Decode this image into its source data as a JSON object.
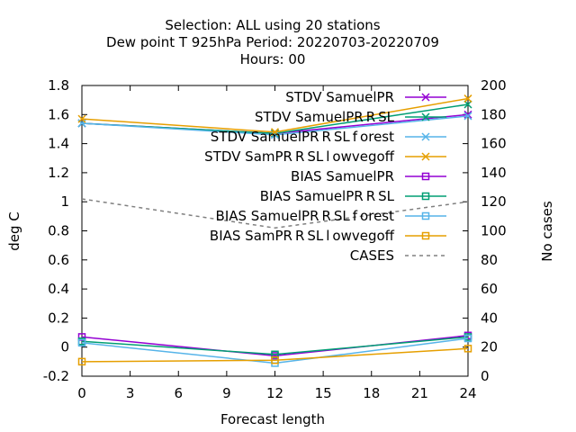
{
  "chart_data": {
    "type": "line",
    "title_lines": [
      "Selection: ALL using    20 stations",
      "Dew point T 925hPa   Period: 20220703-20220709",
      "Hours:  00"
    ],
    "xlabel": "Forecast length",
    "ylabel": "deg C",
    "y2label": "No cases",
    "x": [
      0,
      12,
      24
    ],
    "xlim": [
      0,
      24
    ],
    "xticks": [
      0,
      3,
      6,
      9,
      12,
      15,
      18,
      21,
      24
    ],
    "ylim": [
      -0.2,
      1.8
    ],
    "yticks": [
      -0.2,
      0,
      0.2,
      0.4,
      0.6,
      0.8,
      1,
      1.2,
      1.4,
      1.6,
      1.8
    ],
    "ytick_labels": [
      "-0.2",
      "0",
      "0.2",
      "0.4",
      "0.6",
      "0.8",
      "1",
      "1.2",
      "1.4",
      "1.6",
      "1.8"
    ],
    "y2lim": [
      0,
      200
    ],
    "y2ticks": [
      0,
      20,
      40,
      60,
      80,
      100,
      120,
      140,
      160,
      180,
      200
    ],
    "grid": false,
    "legend_position": "top-right",
    "series": [
      {
        "name": "STDV SamuelPR",
        "legend_text": "STDV SamuelPR",
        "values": [
          1.54,
          1.47,
          1.6
        ],
        "color": "#9400d3",
        "marker": "x",
        "axis": "y"
      },
      {
        "name": "STDV SamuelPR_RSL",
        "legend_text": "STDV SamuelPR R SL",
        "values": [
          1.54,
          1.47,
          1.67
        ],
        "color": "#009e73",
        "marker": "x",
        "axis": "y"
      },
      {
        "name": "STDV SamuelPR_RSL_forest",
        "legend_text": "STDV SamuelPR R SL f orest",
        "values": [
          1.54,
          1.46,
          1.59
        ],
        "color": "#56b4e9",
        "marker": "x",
        "axis": "y"
      },
      {
        "name": "STDV SamPR_RSL_lowvegoff",
        "legend_text": "STDV SamPR R SL l owvegoff",
        "values": [
          1.57,
          1.48,
          1.71
        ],
        "color": "#e69f00",
        "marker": "x",
        "axis": "y"
      },
      {
        "name": "BIAS SamuelPR",
        "legend_text": "BIAS SamuelPR",
        "values": [
          0.07,
          -0.06,
          0.08
        ],
        "color": "#9400d3",
        "marker": "square",
        "axis": "y"
      },
      {
        "name": "BIAS SamuelPR_RSL",
        "legend_text": "BIAS SamuelPR R SL",
        "values": [
          0.04,
          -0.05,
          0.07
        ],
        "color": "#009e73",
        "marker": "square",
        "axis": "y"
      },
      {
        "name": "BIAS SamuelPR_RSL_forest",
        "legend_text": "BIAS SamuelPR R SL f orest",
        "values": [
          0.03,
          -0.11,
          0.06
        ],
        "color": "#56b4e9",
        "marker": "square",
        "axis": "y"
      },
      {
        "name": "BIAS SamPR_RSL_lowvegoff",
        "legend_text": "BIAS SamPR R SL l owvegoff",
        "values": [
          -0.1,
          -0.09,
          -0.01
        ],
        "color": "#e69f00",
        "marker": "square",
        "axis": "y"
      },
      {
        "name": "CASES",
        "legend_text": "CASES",
        "values": [
          122,
          102,
          120
        ],
        "color": "#808080",
        "marker": "none",
        "dashed": true,
        "axis": "y2"
      }
    ]
  }
}
